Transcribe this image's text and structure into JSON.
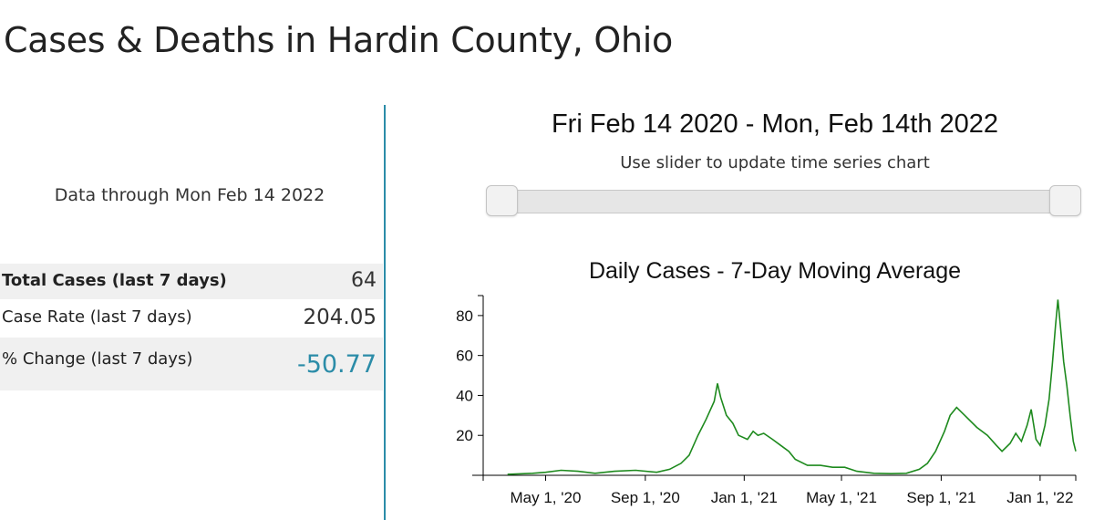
{
  "header": {
    "title": "Cases & Deaths in Hardin County, Ohio"
  },
  "summary": {
    "data_through": "Data through Mon Feb 14 2022",
    "rows": [
      {
        "label": "Total Cases (last 7 days)",
        "value": "64"
      },
      {
        "label": "Case Rate (last 7 days)",
        "value": "204.05"
      },
      {
        "label": "% Change (last 7 days)",
        "value": "-50.77"
      }
    ]
  },
  "range": {
    "title": "Fri Feb 14 2020 - Mon, Feb 14th 2022",
    "hint": "Use slider to update time series chart",
    "start": 0.0,
    "end": 1.0
  },
  "colors": {
    "accent": "#2b8ca8",
    "line": "#1e8a1e"
  },
  "chart_data": {
    "type": "line",
    "title": "Daily Cases - 7-Day Moving Average",
    "xlabel": "",
    "ylabel": "",
    "xlim": [
      "2020-02-14",
      "2022-02-14"
    ],
    "ylim": [
      0,
      90
    ],
    "yticks": [
      20,
      40,
      60,
      80
    ],
    "xticks": [
      {
        "date": "2020-05-01",
        "label": "May 1, '20"
      },
      {
        "date": "2020-09-01",
        "label": "Sep 1, '20"
      },
      {
        "date": "2021-01-01",
        "label": "Jan 1, '21"
      },
      {
        "date": "2021-05-01",
        "label": "May 1, '21"
      },
      {
        "date": "2021-09-01",
        "label": "Sep 1, '21"
      },
      {
        "date": "2022-01-01",
        "label": "Jan 1, '22"
      }
    ],
    "grid": false,
    "legend": "none",
    "series": [
      {
        "points": [
          [
            "2020-03-15",
            0.5
          ],
          [
            "2020-04-15",
            1
          ],
          [
            "2020-05-01",
            1.5
          ],
          [
            "2020-05-20",
            2.5
          ],
          [
            "2020-06-10",
            2
          ],
          [
            "2020-07-01",
            1
          ],
          [
            "2020-07-25",
            2
          ],
          [
            "2020-08-20",
            2.5
          ],
          [
            "2020-09-15",
            1.5
          ],
          [
            "2020-10-01",
            3
          ],
          [
            "2020-10-15",
            6
          ],
          [
            "2020-10-25",
            10
          ],
          [
            "2020-11-05",
            20
          ],
          [
            "2020-11-15",
            28
          ],
          [
            "2020-11-25",
            37
          ],
          [
            "2020-11-29",
            46
          ],
          [
            "2020-12-03",
            39
          ],
          [
            "2020-12-10",
            30
          ],
          [
            "2020-12-18",
            26
          ],
          [
            "2020-12-25",
            20
          ],
          [
            "2021-01-05",
            18
          ],
          [
            "2021-01-12",
            22
          ],
          [
            "2021-01-18",
            20
          ],
          [
            "2021-01-25",
            21
          ],
          [
            "2021-02-05",
            18
          ],
          [
            "2021-02-15",
            15
          ],
          [
            "2021-02-25",
            12
          ],
          [
            "2021-03-05",
            8
          ],
          [
            "2021-03-20",
            5
          ],
          [
            "2021-04-05",
            5
          ],
          [
            "2021-04-20",
            4
          ],
          [
            "2021-05-05",
            4
          ],
          [
            "2021-05-20",
            2
          ],
          [
            "2021-06-10",
            1
          ],
          [
            "2021-07-01",
            0.8
          ],
          [
            "2021-07-20",
            1
          ],
          [
            "2021-08-05",
            3
          ],
          [
            "2021-08-15",
            6
          ],
          [
            "2021-08-25",
            12
          ],
          [
            "2021-09-05",
            22
          ],
          [
            "2021-09-12",
            30
          ],
          [
            "2021-09-20",
            34
          ],
          [
            "2021-09-30",
            30
          ],
          [
            "2021-10-15",
            24
          ],
          [
            "2021-10-28",
            20
          ],
          [
            "2021-11-08",
            15
          ],
          [
            "2021-11-15",
            12
          ],
          [
            "2021-11-25",
            16
          ],
          [
            "2021-12-02",
            21
          ],
          [
            "2021-12-09",
            17
          ],
          [
            "2021-12-16",
            25
          ],
          [
            "2021-12-21",
            33
          ],
          [
            "2021-12-27",
            18
          ],
          [
            "2022-01-01",
            15
          ],
          [
            "2022-01-07",
            25
          ],
          [
            "2022-01-12",
            38
          ],
          [
            "2022-01-16",
            55
          ],
          [
            "2022-01-20",
            75
          ],
          [
            "2022-01-23",
            88
          ],
          [
            "2022-01-26",
            75
          ],
          [
            "2022-01-30",
            57
          ],
          [
            "2022-02-03",
            45
          ],
          [
            "2022-02-07",
            30
          ],
          [
            "2022-02-11",
            17
          ],
          [
            "2022-02-14",
            12
          ]
        ]
      }
    ]
  }
}
